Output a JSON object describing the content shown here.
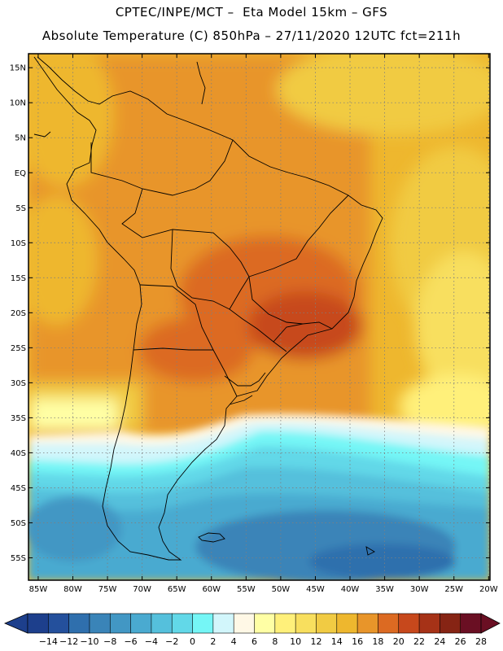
{
  "header": {
    "line1": "CPTEC/INPE/MCT –  Eta Model 15km – GFS",
    "line2": "Absolute Temperature (C) 850hPa – 27/11/2020 12UTC fct=211h"
  },
  "map": {
    "lat_labels": [
      "15N",
      "10N",
      "5N",
      "EQ",
      "5S",
      "10S",
      "15S",
      "20S",
      "25S",
      "30S",
      "35S",
      "40S",
      "45S",
      "50S",
      "55S"
    ],
    "lon_labels": [
      "85W",
      "80W",
      "75W",
      "70W",
      "65W",
      "60W",
      "55W",
      "50W",
      "45W",
      "40W",
      "35W",
      "30W",
      "25W",
      "20W"
    ]
  },
  "colorbar": {
    "labels": [
      "-14",
      "-12",
      "-10",
      "-8",
      "-6",
      "-4",
      "-2",
      "0",
      "2",
      "4",
      "6",
      "8",
      "10",
      "12",
      "14",
      "16",
      "18",
      "20",
      "22",
      "24",
      "26",
      "28"
    ],
    "colors": [
      "#1d3f8c",
      "#24509c",
      "#2f6fad",
      "#3a84b8",
      "#4297c4",
      "#4aaad0",
      "#55c0dc",
      "#62d8e8",
      "#75f6f6",
      "#d2f6fb",
      "#fff8e6",
      "#ffffa5",
      "#fff07a",
      "#f8df5e",
      "#f1cb43",
      "#eeb72e",
      "#e8952a",
      "#dc6a22",
      "#c7481c",
      "#a63217",
      "#862414",
      "#6a0f23"
    ]
  }
}
